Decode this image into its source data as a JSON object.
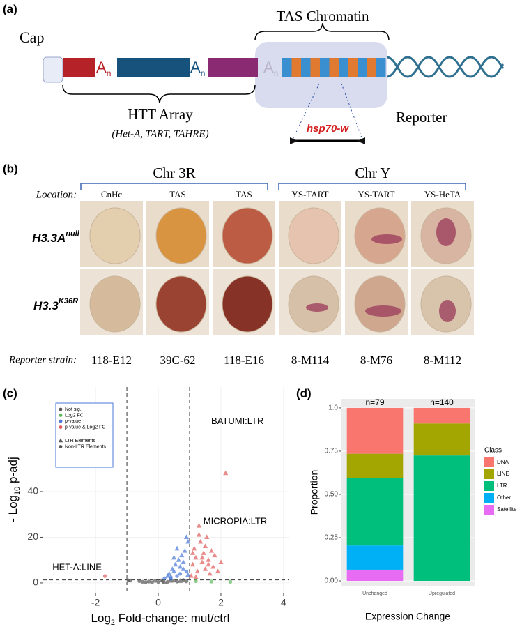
{
  "panel_labels": [
    "(a)",
    "(b)",
    "(c)",
    "(d)"
  ],
  "panel_a": {
    "cap": "Cap",
    "poly_a": {
      "base": "A",
      "sub": "n"
    },
    "tas_label": "TAS Chromatin",
    "htt_label": "HTT Array",
    "htt_members": "(Het-A, TART, TAHRE)",
    "reporter_label": "Reporter",
    "reporter_gene": "hsp70-w"
  },
  "panel_b": {
    "chromosomes": [
      "Chr 3R",
      "Chr Y"
    ],
    "location_label": "Location:",
    "locations": [
      "CnHc",
      "TAS",
      "TAS",
      "YS-TART",
      "YS-TART",
      "YS-HeTA"
    ],
    "genotypes": [
      {
        "base": "H3.3A",
        "sup": "null"
      },
      {
        "base": "H3.3",
        "sup": "K36R"
      }
    ],
    "strain_label": "Reporter strain:",
    "strains": [
      "118-E12",
      "39C-62",
      "118-E16",
      "8-M114",
      "8-M76",
      "8-M112"
    ]
  },
  "chart_data": [
    {
      "type": "scatter",
      "x_label": [
        "Log",
        "2",
        " Fold-change: mut/ctrl"
      ],
      "y_label": [
        "- Log",
        "10",
        " p-adj"
      ],
      "xlim": [
        -3.67,
        4.18
      ],
      "ylim": [
        -4.3,
        85.8
      ],
      "xticks": [
        -2,
        0,
        2,
        4
      ],
      "yticks": [
        0,
        20,
        40
      ],
      "thresholds": {
        "x": [
          -1,
          1
        ],
        "y": 1.3
      },
      "series": [
        {
          "name": "Not sig.",
          "color": "#555555",
          "x": [
            -0.9,
            -0.6,
            -0.5,
            -0.4,
            -0.3,
            -0.2,
            -0.1,
            0,
            0.1,
            0.15,
            0.2,
            0.3,
            0.4,
            0.5,
            0.6,
            0.7,
            0.8,
            -0.95,
            0.9
          ],
          "values": [
            1.0,
            0.8,
            0.5,
            0.3,
            0.6,
            0.2,
            0.9,
            0.4,
            1.1,
            0.7,
            0.3,
            0.5,
            0.9,
            1.0,
            0.6,
            0.8,
            1.2,
            1.1,
            0.7
          ],
          "markers": [
            "circle",
            "circle",
            "circle",
            "circle",
            "circle",
            "circle",
            "circle",
            "circle",
            "circle",
            "circle",
            "triangle",
            "circle",
            "triangle",
            "circle",
            "circle",
            "triangle",
            "circle",
            "circle",
            "circle"
          ]
        },
        {
          "name": "Log2 FC",
          "color": "#5cb85c",
          "x": [
            1.2,
            1.7,
            2.3
          ],
          "values": [
            0.8,
            0.6,
            0.5
          ],
          "markers": [
            "circle",
            "circle",
            "circle"
          ]
        },
        {
          "name": "p-value",
          "color": "#4a78d8",
          "x": [
            0.2,
            0.3,
            0.35,
            0.4,
            0.45,
            0.5,
            0.55,
            0.6,
            0.65,
            0.7,
            0.75,
            0.8,
            0.85,
            0.9,
            0.95,
            0.5,
            0.6,
            0.7,
            0.8,
            0.9,
            0.4,
            0.95
          ],
          "values": [
            2,
            3,
            4,
            2.5,
            6,
            5,
            8,
            3,
            10,
            7,
            12,
            9,
            14,
            5,
            18,
            11,
            15,
            4,
            6,
            20,
            1.8,
            3.5
          ],
          "markers": [
            "circle",
            "triangle",
            "triangle",
            "circle",
            "triangle",
            "triangle",
            "triangle",
            "circle",
            "triangle",
            "triangle",
            "triangle",
            "triangle",
            "triangle",
            "circle",
            "triangle",
            "triangle",
            "triangle",
            "circle",
            "triangle",
            "triangle",
            "circle",
            "triangle"
          ]
        },
        {
          "name": "p-value & Log2 FC",
          "color": "#e05a5a",
          "x": [
            1.05,
            1.1,
            1.15,
            1.2,
            1.25,
            1.3,
            1.35,
            1.4,
            1.45,
            1.5,
            1.55,
            1.6,
            1.65,
            1.7,
            1.75,
            1.8,
            1.9,
            2.0,
            1.3,
            1.5,
            1.2,
            1.4,
            2.15,
            -1.7,
            1.1,
            1.6
          ],
          "values": [
            3,
            8,
            15,
            11,
            5,
            25,
            18,
            9,
            13,
            6,
            20,
            10,
            4,
            14,
            7,
            12,
            5,
            9,
            21,
            16,
            2.5,
            11,
            48,
            3,
            13,
            8
          ],
          "markers": [
            "triangle",
            "triangle",
            "triangle",
            "triangle",
            "triangle",
            "triangle",
            "triangle",
            "triangle",
            "triangle",
            "triangle",
            "triangle",
            "triangle",
            "triangle",
            "triangle",
            "triangle",
            "triangle",
            "triangle",
            "triangle",
            "triangle",
            "triangle",
            "triangle",
            "triangle",
            "triangle",
            "circle",
            "triangle",
            "triangle"
          ]
        }
      ],
      "shape_legend": [
        {
          "name": "LTR Elements",
          "marker": "triangle"
        },
        {
          "name": "Non-LTR Elements",
          "marker": "circle"
        }
      ],
      "annotations": [
        {
          "text": "BATUMI:LTR",
          "x": 2.15,
          "y": 48
        },
        {
          "text": "MICROPIA:LTR",
          "x": 1.3,
          "y": 25
        },
        {
          "text": "HET-A:LINE",
          "x": -1.7,
          "y": 3
        }
      ]
    },
    {
      "type": "stacked_bar",
      "x_label": "Expression Change",
      "y_label": "Proportion",
      "legend_title": "Class",
      "categories": [
        "Unchanged",
        "Upregulated"
      ],
      "top_labels": [
        "n=79",
        "n=140"
      ],
      "ylim": [
        -0.028,
        1.052
      ],
      "yticks": [
        {
          "value": 0,
          "label": "0.00"
        },
        {
          "value": 0.25,
          "label": "0.25"
        },
        {
          "value": 0.5,
          "label": "0.50"
        },
        {
          "value": 0.75,
          "label": "0.75"
        },
        {
          "value": 1,
          "label": "1.0"
        }
      ],
      "series": [
        {
          "name": "DNA",
          "color": "#f8766d",
          "values": [
            0.265,
            0.09
          ]
        },
        {
          "name": "LINE",
          "color": "#a3a500",
          "values": [
            0.14,
            0.185
          ]
        },
        {
          "name": "LTR",
          "color": "#00bf7d",
          "values": [
            0.39,
            0.725
          ]
        },
        {
          "name": "Other",
          "color": "#00b0f6",
          "values": [
            0.14,
            0
          ]
        },
        {
          "name": "Satellite",
          "color": "#e76bf3",
          "values": [
            0.065,
            0
          ]
        }
      ]
    }
  ]
}
